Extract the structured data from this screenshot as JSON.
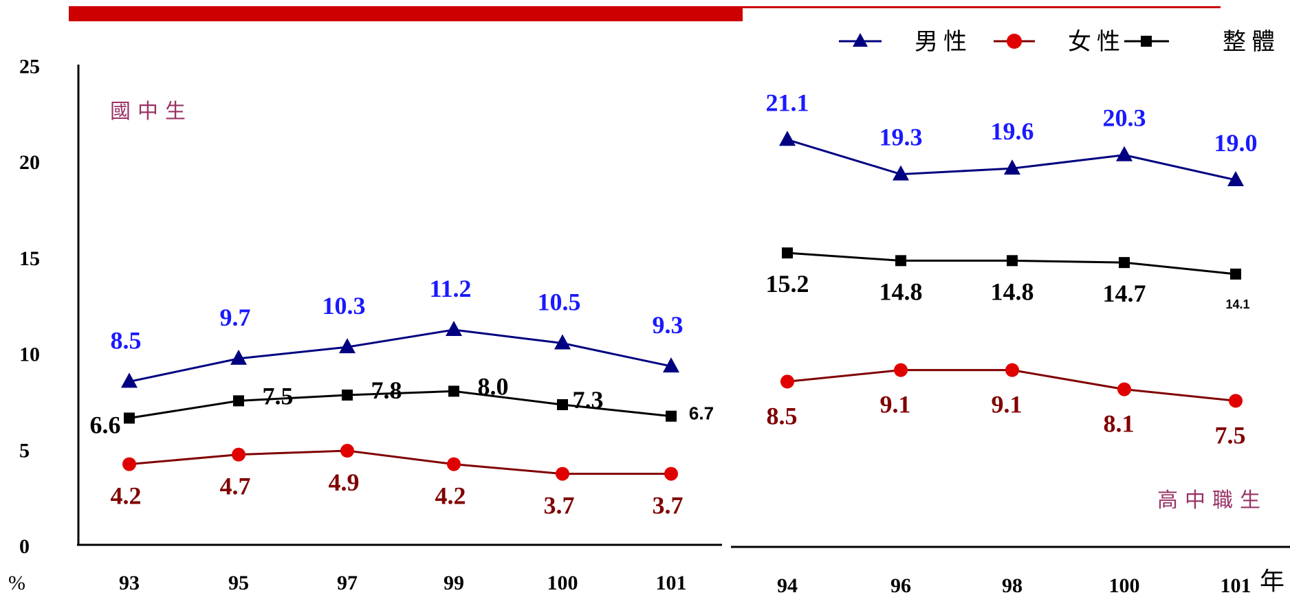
{
  "chart_data": [
    {
      "type": "line",
      "subtitle": "國中生",
      "categories": [
        "93",
        "95",
        "97",
        "99",
        "100",
        "101"
      ],
      "series": [
        {
          "name": "男性",
          "color": "#000080",
          "label_color": "#1a1aff",
          "marker": "triangle",
          "values": [
            8.5,
            9.7,
            10.3,
            11.2,
            10.5,
            9.3
          ]
        },
        {
          "name": "女性",
          "color": "#800000",
          "label_color": "#800000",
          "marker": "circle",
          "values": [
            4.2,
            4.7,
            4.9,
            4.2,
            3.7,
            3.7
          ]
        },
        {
          "name": "整體",
          "color": "#000000",
          "label_color": "#000000",
          "marker": "square",
          "values": [
            6.6,
            7.5,
            7.8,
            8.0,
            7.3,
            6.7
          ]
        }
      ],
      "ylim": [
        0,
        25
      ],
      "yticks": [
        "0",
        "5",
        "10",
        "15",
        "20",
        "25"
      ],
      "ylabel": "%"
    },
    {
      "type": "line",
      "subtitle": "高中職生",
      "categories": [
        "94",
        "96",
        "98",
        "100",
        "101"
      ],
      "series": [
        {
          "name": "男性",
          "color": "#000080",
          "label_color": "#1a1aff",
          "marker": "triangle",
          "values": [
            21.1,
            19.3,
            19.6,
            20.3,
            19.0
          ]
        },
        {
          "name": "女性",
          "color": "#800000",
          "label_color": "#800000",
          "marker": "circle",
          "values": [
            8.5,
            9.1,
            9.1,
            8.1,
            7.5
          ]
        },
        {
          "name": "整體",
          "color": "#000000",
          "label_color": "#000000",
          "marker": "square",
          "values": [
            15.2,
            14.8,
            14.8,
            14.7,
            14.1
          ]
        }
      ],
      "ylim": [
        0,
        25
      ],
      "xlabel": "年"
    }
  ],
  "legend": {
    "placement": "top-right",
    "items": [
      {
        "label": "男性",
        "marker": "triangle",
        "color": "#000080"
      },
      {
        "label": "女性",
        "marker": "circle",
        "color": "#e00000"
      },
      {
        "label": "整體",
        "marker": "square",
        "color": "#000000"
      }
    ]
  },
  "accent_bar_color": "#cc0000"
}
